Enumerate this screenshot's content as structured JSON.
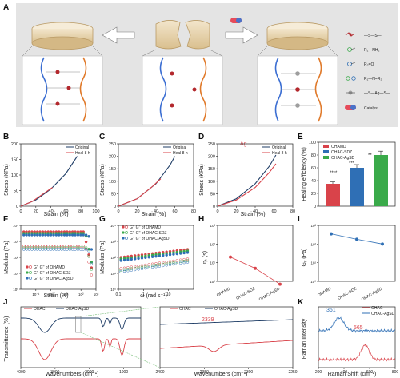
{
  "panels": {
    "A": {
      "label": "A",
      "legend": [
        {
          "text": "—S—S—",
          "icon": "disulfide-icon"
        },
        {
          "text": "R₁—NH₂",
          "icon": "amine-icon"
        },
        {
          "text": "R₂=O",
          "icon": "aldehyde-icon"
        },
        {
          "text": "R₁—N=R₂",
          "icon": "schiff-base-icon"
        },
        {
          "text": "—S—Ag—S—",
          "icon": "silver-thiolate-icon"
        },
        {
          "text": "Catalyst",
          "icon": "catalyst-capsule-icon"
        }
      ]
    },
    "B": {
      "label": "B",
      "ylabel": "Stress (KPa)",
      "xlabel": "Strain (%)",
      "legend": [
        "Original",
        "Heal 8 h"
      ]
    },
    "C": {
      "label": "C",
      "ylabel": "Stress (KPa)",
      "xlabel": "Strain (%)",
      "legend": [
        "Original",
        "Heal 8 h"
      ]
    },
    "D": {
      "label": "D",
      "ylabel": "Stress (KPa)",
      "xlabel": "Strain (%)",
      "legend": [
        "Original",
        "Heal 8 h"
      ],
      "marker": "Ag"
    },
    "E": {
      "label": "E",
      "ylabel": "Healing efficiency (%)",
      "legend": [
        "OHAMD",
        "OHAC-SDZ",
        "OHAC-AgSD"
      ],
      "sig": [
        "****",
        "***",
        "**"
      ]
    },
    "F": {
      "label": "F",
      "ylabel": "Modulus (Pa)",
      "xlabel": "Strain (%)",
      "legend": [
        "G', G'' of OHAMD",
        "G', G'' of OHAC-SDZ",
        "G', G'' of OHAC-AgSD"
      ]
    },
    "G": {
      "label": "G",
      "ylabel": "Modulus (Pa)",
      "xlabel": "ω (rad s⁻¹)",
      "legend": [
        "G', G'' of OHAMD",
        "G', G'' of OHAC-SDZ",
        "G', G'' of OHAC-AgSD"
      ]
    },
    "H": {
      "label": "H",
      "ylabel": "ηₜ (s)"
    },
    "I": {
      "label": "I",
      "ylabel": "Gᵧ (Pa)"
    },
    "J": {
      "label": "J",
      "ylabel": "Transmittance (%)",
      "xlabel": "Wavenumbers (cm⁻¹)",
      "legend": [
        "OHAC",
        "OHAC-AgSD"
      ],
      "peak": "2339"
    },
    "K": {
      "label": "K",
      "ylabel": "Raman Intensity",
      "xlabel": "Raman Shift (cm⁻¹)",
      "legend": [
        "OHAC",
        "OHAC-AgSD"
      ],
      "peaks": [
        "361",
        "565"
      ]
    }
  },
  "colors": {
    "red": "#d9434a",
    "blue": "#2f6fb5",
    "green": "#3aaa4a",
    "navy": "#1f3d66",
    "orange": "#e07a2b"
  },
  "chart_data": [
    {
      "panel": "B",
      "type": "line",
      "xlabel": "Strain (%)",
      "ylabel": "Stress (KPa)",
      "xlim": [
        0,
        100
      ],
      "ylim": [
        0,
        200
      ],
      "xticks": [
        0,
        20,
        40,
        60,
        80,
        100
      ],
      "yticks": [
        0,
        50,
        100,
        150,
        200
      ],
      "series": [
        {
          "name": "Original",
          "color": "#1f3d66",
          "x": [
            0,
            20,
            40,
            60,
            75
          ],
          "y": [
            0,
            20,
            55,
            105,
            160
          ]
        },
        {
          "name": "Heal 8 h",
          "color": "#d9434a",
          "x": [
            0,
            15,
            30,
            42
          ],
          "y": [
            0,
            15,
            40,
            60
          ]
        }
      ]
    },
    {
      "panel": "C",
      "type": "line",
      "xlabel": "Strain (%)",
      "ylabel": "Stress (KPa)",
      "xlim": [
        0,
        80
      ],
      "ylim": [
        0,
        250
      ],
      "xticks": [
        0,
        20,
        40,
        60,
        80
      ],
      "yticks": [
        0,
        50,
        100,
        150,
        200,
        250
      ],
      "series": [
        {
          "name": "Original",
          "color": "#1f3d66",
          "x": [
            0,
            20,
            40,
            55,
            60
          ],
          "y": [
            0,
            30,
            90,
            165,
            200
          ]
        },
        {
          "name": "Heal 8 h",
          "color": "#d9434a",
          "x": [
            0,
            20,
            35,
            45
          ],
          "y": [
            0,
            30,
            75,
            110
          ]
        }
      ]
    },
    {
      "panel": "D",
      "type": "line",
      "xlabel": "Strain (%)",
      "ylabel": "Stress (KPa)",
      "xlim": [
        0,
        80
      ],
      "ylim": [
        0,
        250
      ],
      "xticks": [
        0,
        20,
        40,
        60,
        80
      ],
      "yticks": [
        0,
        50,
        100,
        150,
        200,
        250
      ],
      "series": [
        {
          "name": "Original",
          "color": "#1f3d66",
          "x": [
            0,
            20,
            40,
            55,
            62
          ],
          "y": [
            0,
            30,
            90,
            160,
            205
          ]
        },
        {
          "name": "Heal 8 h",
          "color": "#d9434a",
          "x": [
            0,
            20,
            40,
            55,
            62
          ],
          "y": [
            0,
            25,
            75,
            135,
            170
          ]
        }
      ]
    },
    {
      "panel": "E",
      "type": "bar",
      "ylabel": "Healing efficiency (%)",
      "ylim": [
        0,
        100
      ],
      "yticks": [
        0,
        20,
        40,
        60,
        80,
        100
      ],
      "categories": [
        "OHAMD",
        "OHAC-SDZ",
        "OHAC-AgSD"
      ],
      "values": [
        35,
        60,
        80
      ],
      "errors": [
        3,
        5,
        6
      ],
      "colors": [
        "#d9434a",
        "#2f6fb5",
        "#3aaa4a"
      ]
    },
    {
      "panel": "F",
      "type": "scatter",
      "xlabel": "Strain (%)",
      "ylabel": "Modulus (Pa)",
      "xscale": "log",
      "yscale": "log",
      "xlim_log": [
        -2,
        3
      ],
      "ylim_log": [
        0,
        4
      ],
      "xticks_log": [
        -1,
        0,
        1,
        2,
        3
      ],
      "yticks_log": [
        0,
        1,
        2,
        3,
        4
      ],
      "series": [
        {
          "name": "G' OHAMD",
          "color": "#d9434a",
          "filled": true,
          "base": 3.6,
          "drop_at": 2.2
        },
        {
          "name": "G'' OHAMD",
          "color": "#d9434a",
          "filled": false,
          "base": 2.7,
          "drop_at": 2.3
        },
        {
          "name": "G' OHAC-SDZ",
          "color": "#3aaa4a",
          "filled": true,
          "base": 3.5,
          "drop_at": 2.3
        },
        {
          "name": "G'' OHAC-SDZ",
          "color": "#3aaa4a",
          "filled": false,
          "base": 2.6,
          "drop_at": 2.4
        },
        {
          "name": "G' OHAC-AgSD",
          "color": "#2f6fb5",
          "filled": true,
          "base": 3.4,
          "drop_at": 2.5
        },
        {
          "name": "G'' OHAC-AgSD",
          "color": "#2f6fb5",
          "filled": false,
          "base": 2.5,
          "drop_at": 2.5
        }
      ]
    },
    {
      "panel": "G",
      "type": "scatter",
      "xlabel": "ω (rad s⁻¹)",
      "ylabel": "Modulus (Pa)",
      "xscale": "log",
      "yscale": "log",
      "xlim_log": [
        -1,
        2
      ],
      "ylim_log": [
        0,
        4
      ],
      "xticks_log": [
        -1,
        0,
        1
      ],
      "yticks_log": [
        0,
        1,
        2,
        3,
        4
      ],
      "series": [
        {
          "name": "G' OHAMD",
          "color": "#d9434a",
          "filled": true,
          "start": 2.0,
          "end": 2.5
        },
        {
          "name": "G'' OHAMD",
          "color": "#d9434a",
          "filled": false,
          "start": 1.3,
          "end": 1.9
        },
        {
          "name": "G' OHAC-SDZ",
          "color": "#3aaa4a",
          "filled": true,
          "start": 1.9,
          "end": 2.4
        },
        {
          "name": "G'' OHAC-SDZ",
          "color": "#3aaa4a",
          "filled": false,
          "start": 1.2,
          "end": 1.8
        },
        {
          "name": "G' OHAC-AgSD",
          "color": "#2f6fb5",
          "filled": true,
          "start": 1.8,
          "end": 2.3
        },
        {
          "name": "G'' OHAC-AgSD",
          "color": "#2f6fb5",
          "filled": false,
          "start": 1.1,
          "end": 1.7
        }
      ]
    },
    {
      "panel": "H",
      "type": "line",
      "ylabel": "ηₜ (s)",
      "yscale": "log",
      "ylim_log": [
        0,
        3
      ],
      "yticks_log": [
        0,
        1,
        2,
        3
      ],
      "categories": [
        "OHAMD",
        "OHAC-SDZ",
        "OHAC-AgSD"
      ],
      "values": [
        20,
        5,
        0.7
      ],
      "color": "#d9434a"
    },
    {
      "panel": "I",
      "type": "line",
      "ylabel": "Gᵧ (Pa)",
      "yscale": "log",
      "ylim_log": [
        0,
        3
      ],
      "yticks_log": [
        0,
        1,
        2,
        3
      ],
      "categories": [
        "OHAMD",
        "OHAC-SDZ",
        "OHAC-AgSD"
      ],
      "values": [
        350,
        180,
        100
      ],
      "color": "#2f6fb5"
    },
    {
      "panel": "J",
      "type": "line",
      "xlabel": "Wavenumbers (cm⁻¹)",
      "xlim": [
        4000,
        500
      ],
      "xticks": [
        4000,
        3000,
        2000,
        1000
      ],
      "series": [
        {
          "name": "OHAC",
          "color": "#d9434a"
        },
        {
          "name": "OHAC-AgSD",
          "color": "#1f3d66"
        }
      ]
    },
    {
      "panel": "J2",
      "type": "line",
      "xlabel": "Wavenumbers (cm⁻¹)",
      "xlim": [
        2400,
        2250
      ],
      "xticks": [
        2400,
        2350,
        2300,
        2250
      ],
      "series": [
        {
          "name": "OHAC",
          "color": "#d9434a"
        },
        {
          "name": "OHAC-AgSD",
          "color": "#1f3d66"
        }
      ]
    },
    {
      "panel": "K",
      "type": "line",
      "xlabel": "Raman Shift (cm⁻¹)",
      "ylabel": "Raman Intensity",
      "xlim": [
        200,
        800
      ],
      "xticks": [
        200,
        400,
        600,
        800
      ],
      "series": [
        {
          "name": "OHAC",
          "color": "#d9434a",
          "peak": 565
        },
        {
          "name": "OHAC-AgSD",
          "color": "#2f6fb5",
          "peak": 361
        }
      ]
    }
  ]
}
